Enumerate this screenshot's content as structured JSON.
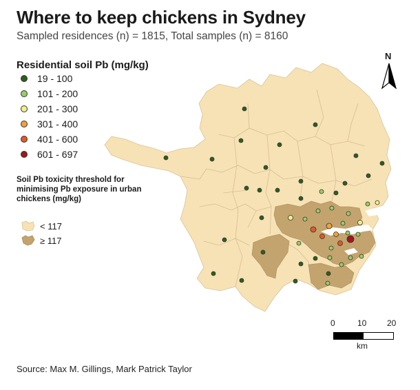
{
  "title": "Where to keep chickens in Sydney",
  "subtitle": "Sampled residences (n) = 1815, Total samples (n) = 8160",
  "legend": {
    "title": "Residential soil Pb (mg/kg)",
    "items": [
      {
        "label": "19 - 100",
        "color": "#2e5e1e"
      },
      {
        "label": "101 - 200",
        "color": "#9ccc68"
      },
      {
        "label": "201 - 300",
        "color": "#f1ef8e"
      },
      {
        "label": "301 - 400",
        "color": "#f0a23c"
      },
      {
        "label": "401 - 600",
        "color": "#e15a28"
      },
      {
        "label": "601 - 697",
        "color": "#a3161c"
      }
    ]
  },
  "threshold": {
    "title": "Soil Pb toxicity threshold for minimising Pb exposure in urban chickens (mg/kg)",
    "items": [
      {
        "label": "< 117",
        "color": "#f7e2b5"
      },
      {
        "label": "≥ 117",
        "color": "#c3a46e"
      }
    ]
  },
  "north_label": "N",
  "scale": {
    "ticks": [
      "0",
      "10",
      "20"
    ],
    "unit": "km"
  },
  "source": "Source: Max M. Gillings, Mark Patrick Taylor"
}
